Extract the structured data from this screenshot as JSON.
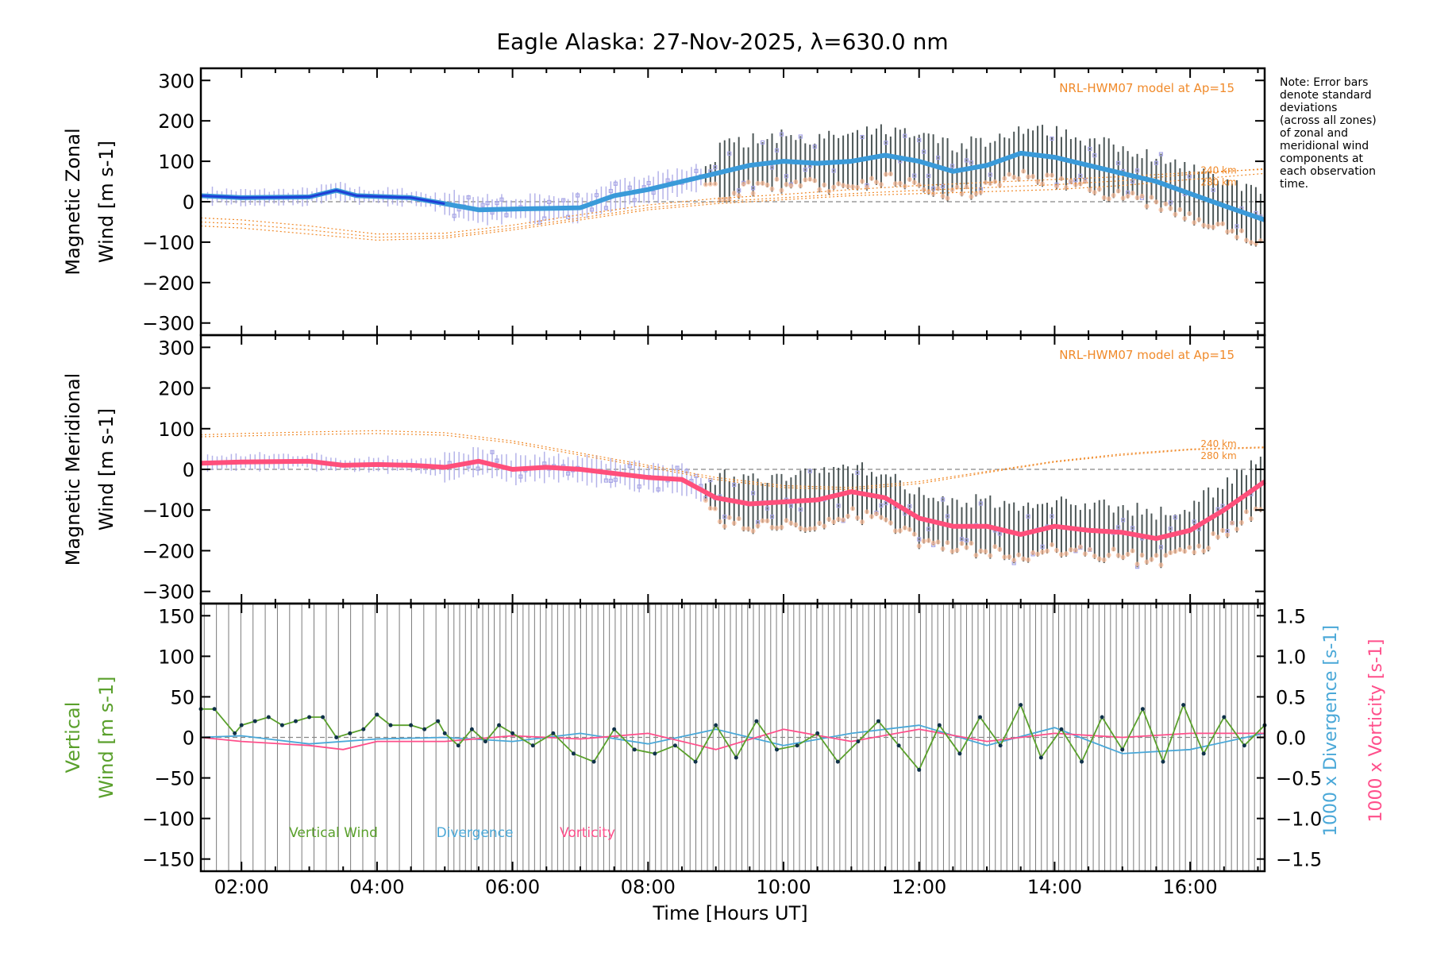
{
  "title": "Eagle Alaska: 27-Nov-2025, λ=630.0 nm",
  "note": [
    "Note: Error bars",
    "denote standard",
    "deviations",
    "(across all zones)",
    "of zonal and",
    "meridional wind",
    "components at",
    "each observation",
    "time."
  ],
  "colors": {
    "zonal": "#3a9ad9",
    "zonal_early": "#1f3fd6",
    "meridional": "#ff4f7b",
    "model": "#f08a2a",
    "vertical": "#5aa02c",
    "divergence": "#4aa8d8",
    "vorticity": "#ff4f8b",
    "scatter": "#a8a6e6",
    "errorbar": "#2e3a3a",
    "zone_fill": "#f7b894"
  },
  "chart_data": [
    {
      "type": "line",
      "title": "",
      "ylabel": [
        "Magnetic Zonal",
        "Wind [m s-1]"
      ],
      "xlabel": "",
      "xlim": [
        1.4,
        17.1
      ],
      "ylim": [
        -330,
        330
      ],
      "yticks": [
        300,
        200,
        100,
        0,
        -100,
        -200,
        -300
      ],
      "ytick_labels": [
        "300",
        "200",
        "100",
        "0",
        "−100",
        "−200",
        "−300"
      ],
      "model_label": "NRL-HWM07 model at Ap=15",
      "model_alt_labels": [
        "240 km",
        "280 km"
      ],
      "series": [
        {
          "name": "Zonal wind",
          "x": [
            1.4,
            2,
            3,
            3.4,
            3.7,
            4.5,
            5,
            5.5,
            6,
            7,
            7.5,
            8,
            8.5,
            9,
            9.5,
            10,
            10.5,
            11,
            11.5,
            12,
            12.5,
            13,
            13.5,
            14,
            14.5,
            15,
            15.5,
            16,
            16.5,
            17.1
          ],
          "values": [
            15,
            10,
            12,
            28,
            15,
            10,
            -5,
            -20,
            -18,
            -15,
            15,
            30,
            50,
            70,
            90,
            100,
            95,
            100,
            115,
            100,
            75,
            90,
            120,
            110,
            90,
            70,
            50,
            20,
            -10,
            -45
          ]
        },
        {
          "name": "Model",
          "x": [
            1.4,
            2,
            3,
            4,
            5,
            6,
            7,
            8,
            9,
            10,
            11,
            12,
            13,
            14,
            15,
            16,
            17.1
          ],
          "values": [
            -60,
            -65,
            -80,
            -95,
            -90,
            -70,
            -45,
            -20,
            -5,
            5,
            15,
            20,
            25,
            30,
            40,
            55,
            70
          ]
        },
        {
          "name": "Model",
          "x": [
            1.4,
            2,
            3,
            4,
            5,
            6,
            7,
            8,
            9,
            10,
            11,
            12,
            13,
            14,
            15,
            16,
            17.1
          ],
          "values": [
            -50,
            -55,
            -70,
            -88,
            -85,
            -65,
            -40,
            -15,
            0,
            10,
            20,
            28,
            35,
            42,
            52,
            68,
            82
          ]
        },
        {
          "name": "Model",
          "x": [
            1.4,
            2,
            3,
            4,
            5,
            6,
            7,
            8,
            9,
            10,
            11,
            12,
            13,
            14,
            15,
            16,
            17.1
          ],
          "values": [
            -40,
            -45,
            -60,
            -80,
            -78,
            -58,
            -32,
            -8,
            8,
            18,
            30,
            40,
            48,
            55,
            62,
            72,
            80
          ]
        }
      ]
    },
    {
      "type": "line",
      "ylabel": [
        "Magnetic Meridional",
        "Wind [m s-1]"
      ],
      "xlim": [
        1.4,
        17.1
      ],
      "ylim": [
        -330,
        330
      ],
      "yticks": [
        300,
        200,
        100,
        0,
        -100,
        -200,
        -300
      ],
      "ytick_labels": [
        "300",
        "200",
        "100",
        "0",
        "−100",
        "−200",
        "−300"
      ],
      "model_label": "NRL-HWM07 model at Ap=15",
      "model_alt_labels": [
        "240 km",
        "280 km"
      ],
      "series": [
        {
          "name": "Meridional wind",
          "x": [
            1.4,
            2,
            3,
            3.5,
            4,
            4.5,
            5,
            5.5,
            6,
            6.5,
            7,
            7.5,
            8,
            8.5,
            9,
            9.5,
            10,
            10.5,
            11,
            11.5,
            12,
            12.5,
            13,
            13.5,
            14,
            14.5,
            15,
            15.5,
            16,
            16.5,
            17.1
          ],
          "values": [
            15,
            18,
            20,
            10,
            12,
            10,
            5,
            20,
            0,
            5,
            0,
            -10,
            -20,
            -25,
            -70,
            -85,
            -80,
            -75,
            -55,
            -70,
            -120,
            -140,
            -140,
            -160,
            -140,
            -150,
            -155,
            -170,
            -150,
            -100,
            -30
          ]
        },
        {
          "name": "Model",
          "x": [
            1.4,
            2,
            3,
            4,
            5,
            6,
            7,
            8,
            9,
            10,
            11,
            12,
            13,
            14,
            15,
            16,
            17.1
          ],
          "values": [
            85,
            88,
            92,
            95,
            90,
            70,
            40,
            10,
            -20,
            -40,
            -45,
            -30,
            -5,
            20,
            38,
            50,
            55
          ]
        },
        {
          "name": "Model",
          "x": [
            1.4,
            2,
            3,
            4,
            5,
            6,
            7,
            8,
            9,
            10,
            11,
            12,
            13,
            14,
            15,
            16,
            17.1
          ],
          "values": [
            80,
            82,
            86,
            88,
            84,
            65,
            35,
            5,
            -25,
            -45,
            -50,
            -35,
            -8,
            18,
            35,
            48,
            53
          ]
        }
      ]
    },
    {
      "type": "line",
      "xlabel": "Time [Hours UT]",
      "ylabel": [
        "Vertical",
        "Wind [m s-1]"
      ],
      "y2label_divergence": "1000 x Divergence [s-1]",
      "y2label_vorticity": "1000 x Vorticity [s-1]",
      "xlim": [
        1.4,
        17.1
      ],
      "xticks": [
        2,
        4,
        6,
        8,
        10,
        12,
        14,
        16
      ],
      "xtick_labels": [
        "02:00",
        "04:00",
        "06:00",
        "08:00",
        "10:00",
        "12:00",
        "14:00",
        "16:00"
      ],
      "ylim": [
        -165,
        165
      ],
      "yticks": [
        150,
        100,
        50,
        0,
        -50,
        -100,
        -150
      ],
      "ytick_labels": [
        "150",
        "100",
        "50",
        "0",
        "−50",
        "−100",
        "−150"
      ],
      "y2lim": [
        -1.65,
        1.65
      ],
      "y2ticks": [
        1.5,
        1.0,
        0.5,
        0.0,
        -0.5,
        -1.0,
        -1.5
      ],
      "y2tick_labels": [
        "1.5",
        "1.0",
        "0.5",
        "0.0",
        "−0.5",
        "−1.0",
        "−1.5"
      ],
      "legend": [
        "Vertical Wind",
        "Divergence",
        "Vorticity"
      ],
      "series": [
        {
          "name": "Vertical Wind",
          "x": [
            1.4,
            1.6,
            1.9,
            2.0,
            2.2,
            2.4,
            2.6,
            2.8,
            3.0,
            3.2,
            3.4,
            3.6,
            3.8,
            4.0,
            4.2,
            4.5,
            4.7,
            4.9,
            5.0,
            5.2,
            5.4,
            5.6,
            5.8,
            6.0,
            6.3,
            6.6,
            6.9,
            7.2,
            7.5,
            7.8,
            8.1,
            8.4,
            8.7,
            9.0,
            9.3,
            9.6,
            9.9,
            10.2,
            10.5,
            10.8,
            11.1,
            11.4,
            11.7,
            12.0,
            12.3,
            12.6,
            12.9,
            13.2,
            13.5,
            13.8,
            14.1,
            14.4,
            14.7,
            15.0,
            15.3,
            15.6,
            15.9,
            16.2,
            16.5,
            16.8,
            17.1
          ],
          "values": [
            35,
            35,
            5,
            15,
            20,
            25,
            15,
            20,
            25,
            25,
            0,
            5,
            10,
            28,
            15,
            15,
            10,
            20,
            5,
            -10,
            10,
            -5,
            15,
            5,
            -10,
            5,
            -20,
            -30,
            10,
            -15,
            -20,
            -10,
            -30,
            15,
            -25,
            20,
            -15,
            -10,
            5,
            -30,
            -5,
            20,
            -10,
            -40,
            15,
            -20,
            25,
            -10,
            40,
            -25,
            10,
            -30,
            25,
            -15,
            35,
            -30,
            40,
            -20,
            25,
            -10,
            15
          ]
        },
        {
          "name": "Divergence",
          "x": [
            1.4,
            2,
            3,
            4,
            5,
            6,
            7,
            8,
            9,
            10,
            11,
            12,
            13,
            14,
            15,
            16,
            17.1
          ],
          "values": [
            0.0,
            0.02,
            -0.08,
            -0.02,
            0.0,
            -0.05,
            0.05,
            -0.08,
            0.1,
            -0.1,
            0.05,
            0.15,
            -0.1,
            0.12,
            -0.2,
            -0.15,
            0.05
          ]
        },
        {
          "name": "Vorticity",
          "x": [
            1.4,
            2,
            3,
            3.5,
            4,
            5,
            6,
            7,
            8,
            9,
            10,
            11,
            12,
            13,
            14,
            15,
            16,
            17.1
          ],
          "values": [
            0.0,
            -0.05,
            -0.1,
            -0.15,
            -0.05,
            -0.05,
            0.02,
            -0.02,
            0.05,
            -0.15,
            0.1,
            -0.05,
            0.1,
            -0.05,
            0.05,
            0.0,
            0.05,
            0.05
          ]
        }
      ]
    }
  ]
}
